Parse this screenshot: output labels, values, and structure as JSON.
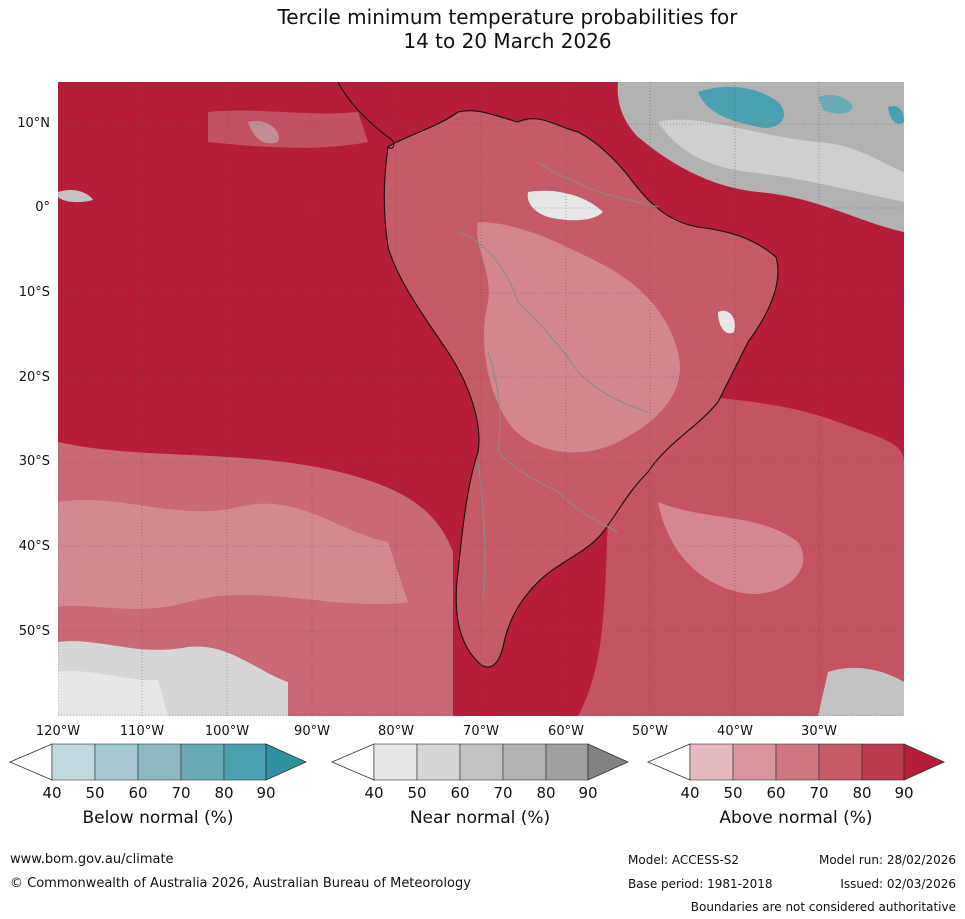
{
  "header": {
    "title_line1": "Tercile minimum temperature probabilities for",
    "title_line2": "14 to 20 March 2026"
  },
  "map": {
    "region": "South America and surrounding oceans",
    "variable": "Tercile minimum temperature probability",
    "dominant_category": "Above normal",
    "latitude_labels": [
      "10°N",
      "0°",
      "10°S",
      "20°S",
      "30°S",
      "40°S",
      "50°S"
    ],
    "longitude_labels": [
      "120°W",
      "110°W",
      "100°W",
      "90°W",
      "80°W",
      "70°W",
      "60°W",
      "50°W",
      "40°W",
      "30°W"
    ],
    "gridlines": true
  },
  "legend": {
    "below": {
      "title": "Below normal (%)",
      "ticks": [
        "40",
        "50",
        "60",
        "70",
        "80",
        "90"
      ],
      "colors": [
        "#ffffff",
        "#c0d8de",
        "#a6c8d0",
        "#8cb8c2",
        "#6aa9b6",
        "#4aa0ae",
        "#2f92a3"
      ]
    },
    "near": {
      "title": "Near normal (%)",
      "ticks": [
        "40",
        "50",
        "60",
        "70",
        "80",
        "90"
      ],
      "colors": [
        "#ffffff",
        "#e7e7e7",
        "#d6d6d6",
        "#c3c3c3",
        "#b2b2b2",
        "#a0a0a0",
        "#828282"
      ]
    },
    "above": {
      "title": "Above normal (%)",
      "ticks": [
        "40",
        "50",
        "60",
        "70",
        "80",
        "90"
      ],
      "colors": [
        "#ffffff",
        "#e4b9bf",
        "#d8959e",
        "#cd7581",
        "#c55a68",
        "#bb3a4e",
        "#b51d3a"
      ]
    }
  },
  "footer": {
    "website": "www.bom.gov.au/climate",
    "copyright": "© Commonwealth of Australia 2026, Australian Bureau of Meteorology",
    "model": "Model: ACCESS-S2",
    "base_period": "Base period: 1981-2018",
    "model_run": "Model run: 28/02/2026",
    "issued": "Issued: 02/03/2026",
    "disclaimer": "Boundaries are not considered authoritative"
  }
}
